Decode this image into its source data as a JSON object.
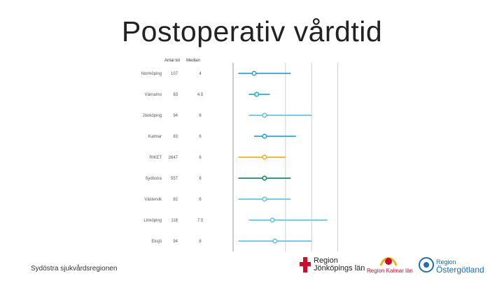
{
  "slide": {
    "title": "Postoperativ vårdtid",
    "footer": "Sydöstra sjukvårdsregionen"
  },
  "logos": {
    "jonkoping": {
      "line1": "Region",
      "line2": "Jönköpings län"
    },
    "kalmar": {
      "line1": "Region Kalmar län"
    },
    "ostergotland": {
      "line1": "Region",
      "line2": "Östergötland"
    }
  },
  "chart_data": {
    "type": "forest",
    "title": "Postoperativ vårdtid",
    "columns": [
      "Antal tot",
      "Median"
    ],
    "xlim": [
      0,
      25
    ],
    "reference_lines": [
      10,
      15,
      20
    ],
    "rows": [
      {
        "label": "Norrköping",
        "n": "107",
        "median": "4",
        "point": 4,
        "low": 1,
        "high": 11,
        "color": "#2aa7d4"
      },
      {
        "label": "Värnamo",
        "n": "83",
        "median": "4.5",
        "point": 4.5,
        "low": 3,
        "high": 7,
        "color": "#2aa7d4"
      },
      {
        "label": "Jönköping",
        "n": "94",
        "median": "6",
        "point": 6,
        "low": 3,
        "high": 15,
        "color": "#5cc8e6"
      },
      {
        "label": "Kalmar",
        "n": "83",
        "median": "6",
        "point": 6,
        "low": 4,
        "high": 12,
        "color": "#2aa7d4"
      },
      {
        "label": "RIKET",
        "n": "2647",
        "median": "6",
        "point": 6,
        "low": 1,
        "high": 10,
        "color": "#f0b31c"
      },
      {
        "label": "Sydöstra",
        "n": "557",
        "median": "6",
        "point": 6,
        "low": 1,
        "high": 11,
        "color": "#178a66"
      },
      {
        "label": "Västervik",
        "n": "82",
        "median": "6",
        "point": 6,
        "low": 1,
        "high": 11,
        "color": "#5cc8e6"
      },
      {
        "label": "Linköping",
        "n": "118",
        "median": "7.5",
        "point": 7.5,
        "low": 3,
        "high": 18,
        "color": "#5cc8e6"
      },
      {
        "label": "Eksjö",
        "n": "94",
        "median": "8",
        "point": 8,
        "low": 1,
        "high": 15,
        "color": "#5cc8e6"
      }
    ]
  }
}
